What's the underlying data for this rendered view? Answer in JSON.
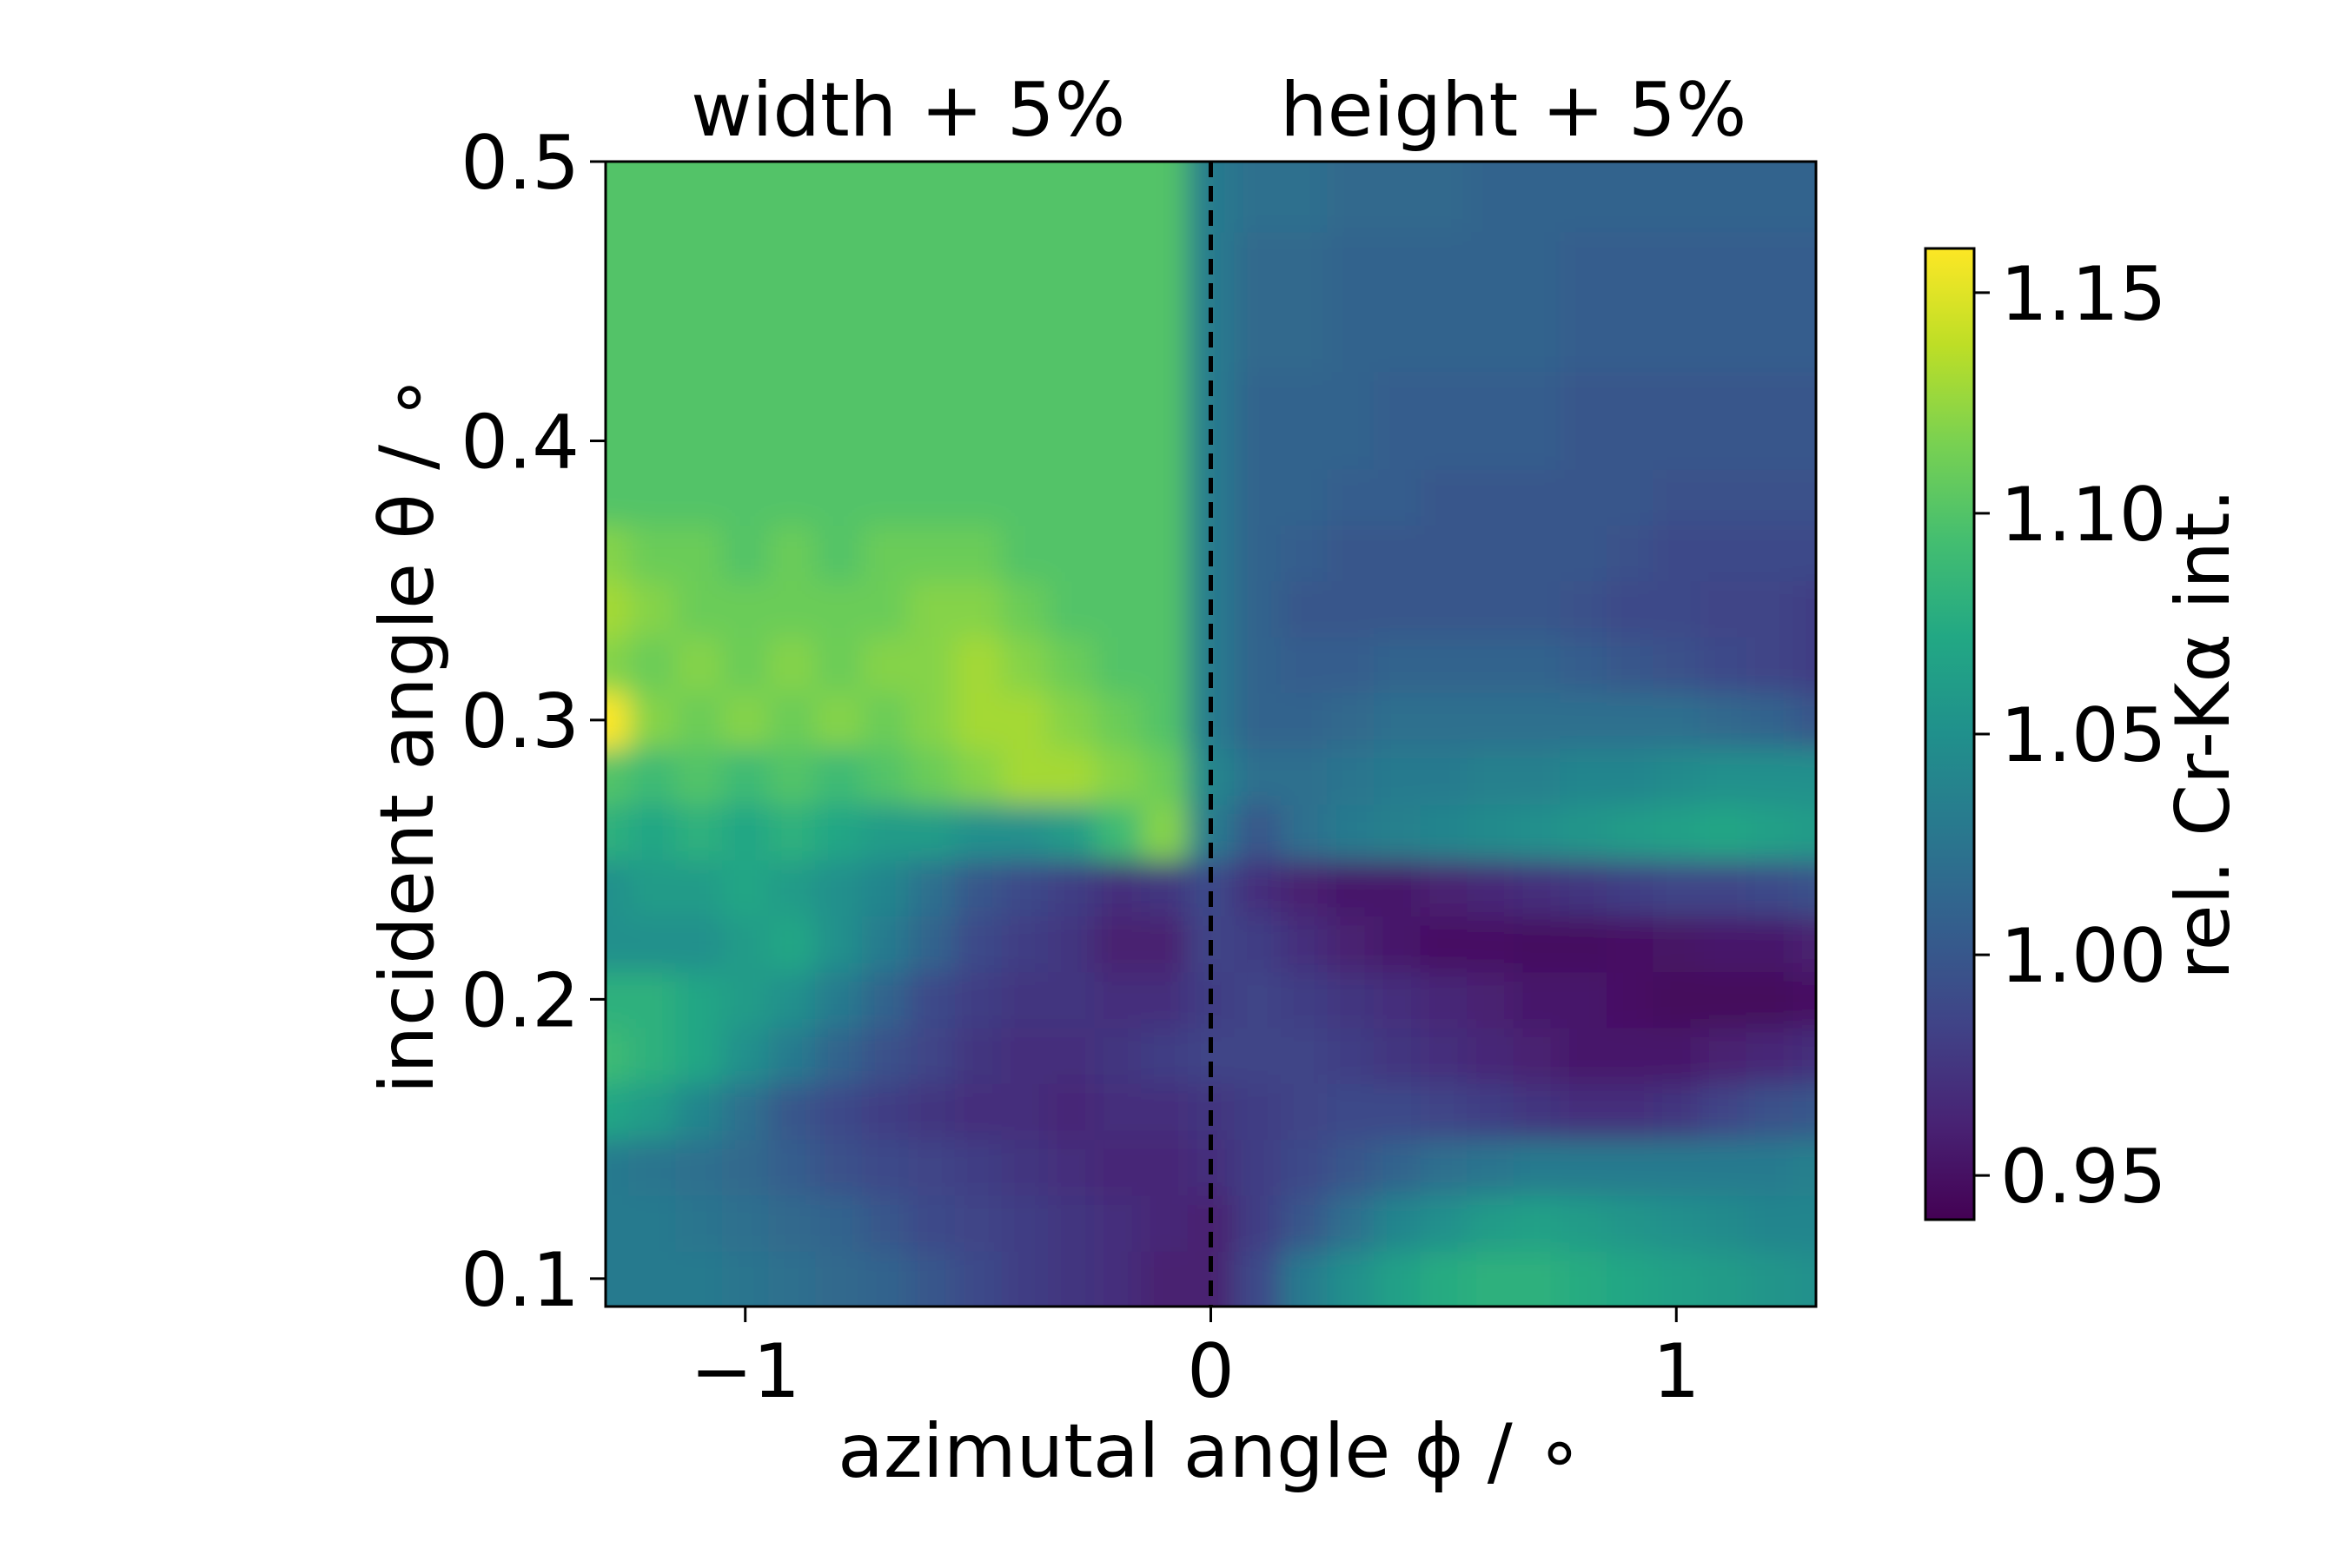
{
  "chart_data": {
    "type": "heatmap",
    "title": "",
    "panels": [
      {
        "title": "width + 5%",
        "x_range": [
          -1.3,
          0
        ]
      },
      {
        "title": "height + 5%",
        "x_range": [
          0,
          1.3
        ]
      }
    ],
    "xlabel": "azimutal angle ϕ / ∘",
    "ylabel": "incident angle θ / ∘",
    "xlim": [
      -1.3,
      1.3
    ],
    "ylim": [
      0.09,
      0.5
    ],
    "xticks": [
      {
        "value": -1,
        "label": "−1"
      },
      {
        "value": 0,
        "label": "0"
      },
      {
        "value": 1,
        "label": "1"
      }
    ],
    "yticks": [
      {
        "value": 0.1,
        "label": "0.1"
      },
      {
        "value": 0.2,
        "label": "0.2"
      },
      {
        "value": 0.3,
        "label": "0.3"
      },
      {
        "value": 0.4,
        "label": "0.4"
      },
      {
        "value": 0.5,
        "label": "0.5"
      }
    ],
    "divider": {
      "x": 0,
      "style": "dashed",
      "color": "#000000"
    },
    "colorbar": {
      "label": "rel. Cr-Kα int.",
      "colormap": "viridis",
      "range": [
        0.94,
        1.16
      ],
      "ticks": [
        {
          "value": 0.95,
          "label": "0.95"
        },
        {
          "value": 1.0,
          "label": "1.00"
        },
        {
          "value": 1.05,
          "label": "1.05"
        },
        {
          "value": 1.1,
          "label": "1.10"
        },
        {
          "value": 1.15,
          "label": "1.15"
        }
      ]
    },
    "grid": false,
    "approx_values": {
      "phi": [
        -1.3,
        -1.2,
        -1.1,
        -1.0,
        -0.9,
        -0.8,
        -0.7,
        -0.6,
        -0.5,
        -0.4,
        -0.3,
        -0.2,
        -0.1,
        0.0,
        0.1,
        0.2,
        0.3,
        0.4,
        0.5,
        0.6,
        0.7,
        0.8,
        0.9,
        1.0,
        1.1,
        1.2,
        1.3
      ],
      "theta": [
        0.1,
        0.12,
        0.14,
        0.16,
        0.18,
        0.2,
        0.22,
        0.24,
        0.26,
        0.28,
        0.3,
        0.32,
        0.34,
        0.36,
        0.38,
        0.4,
        0.45,
        0.5
      ],
      "intensity": [
        [
          1.03,
          1.03,
          1.03,
          1.025,
          1.02,
          1.015,
          1.01,
          1.0,
          0.99,
          0.98,
          0.975,
          0.97,
          0.96,
          0.96,
          0.99,
          1.03,
          1.05,
          1.065,
          1.075,
          1.08,
          1.08,
          1.075,
          1.07,
          1.065,
          1.06,
          1.055,
          1.05
        ],
        [
          1.03,
          1.03,
          1.025,
          1.02,
          1.015,
          1.01,
          1.0,
          0.99,
          0.985,
          0.98,
          0.975,
          0.97,
          0.965,
          0.96,
          0.98,
          1.0,
          1.02,
          1.04,
          1.05,
          1.06,
          1.065,
          1.06,
          1.055,
          1.05,
          1.045,
          1.04,
          1.04
        ],
        [
          1.03,
          1.025,
          1.02,
          1.015,
          1.005,
          0.995,
          0.99,
          0.985,
          0.98,
          0.975,
          0.97,
          0.965,
          0.965,
          0.97,
          0.98,
          0.99,
          1.0,
          1.01,
          1.02,
          1.025,
          1.03,
          1.03,
          1.03,
          1.03,
          1.03,
          1.03,
          1.035
        ],
        [
          1.07,
          1.06,
          1.04,
          1.02,
          1.0,
          0.99,
          0.98,
          0.975,
          0.97,
          0.97,
          0.965,
          0.97,
          0.97,
          0.975,
          0.98,
          0.985,
          0.99,
          0.99,
          0.985,
          0.98,
          0.975,
          0.97,
          0.97,
          0.975,
          0.985,
          0.995,
          1.0
        ],
        [
          1.09,
          1.08,
          1.07,
          1.05,
          1.03,
          1.01,
          0.995,
          0.985,
          0.975,
          0.97,
          0.97,
          0.975,
          0.98,
          0.985,
          0.985,
          0.985,
          0.98,
          0.975,
          0.97,
          0.965,
          0.96,
          0.955,
          0.955,
          0.955,
          0.96,
          0.965,
          0.97
        ],
        [
          1.08,
          1.08,
          1.07,
          1.06,
          1.05,
          1.03,
          1.01,
          0.99,
          0.98,
          0.975,
          0.975,
          0.97,
          0.97,
          0.98,
          0.985,
          0.98,
          0.975,
          0.97,
          0.965,
          0.96,
          0.955,
          0.955,
          0.95,
          0.945,
          0.945,
          0.945,
          0.95
        ],
        [
          1.05,
          1.05,
          1.05,
          1.06,
          1.07,
          1.05,
          1.03,
          1.01,
          0.99,
          0.98,
          0.975,
          0.96,
          0.96,
          0.985,
          0.98,
          0.97,
          0.96,
          0.955,
          0.95,
          0.95,
          0.948,
          0.948,
          0.95,
          0.952,
          0.955,
          0.955,
          0.96
        ],
        [
          1.05,
          1.06,
          1.06,
          1.07,
          1.06,
          1.05,
          1.04,
          1.02,
          1.0,
          0.99,
          0.98,
          0.97,
          0.975,
          0.99,
          0.97,
          0.96,
          0.955,
          0.955,
          0.96,
          0.965,
          0.97,
          0.975,
          0.98,
          0.985,
          0.985,
          0.99,
          0.995
        ],
        [
          1.08,
          1.07,
          1.08,
          1.07,
          1.08,
          1.07,
          1.06,
          1.06,
          1.05,
          1.05,
          1.06,
          1.09,
          1.12,
          1.03,
          1.0,
          1.02,
          1.03,
          1.035,
          1.04,
          1.045,
          1.05,
          1.055,
          1.06,
          1.065,
          1.07,
          1.065,
          1.06
        ],
        [
          1.1,
          1.09,
          1.1,
          1.09,
          1.1,
          1.09,
          1.1,
          1.11,
          1.12,
          1.13,
          1.13,
          1.12,
          1.11,
          1.04,
          1.02,
          1.02,
          1.025,
          1.03,
          1.03,
          1.035,
          1.035,
          1.04,
          1.04,
          1.045,
          1.05,
          1.05,
          1.05
        ],
        [
          1.16,
          1.12,
          1.11,
          1.12,
          1.11,
          1.12,
          1.11,
          1.12,
          1.13,
          1.13,
          1.12,
          1.11,
          1.1,
          1.03,
          1.01,
          1.01,
          1.015,
          1.02,
          1.02,
          1.02,
          1.02,
          1.02,
          1.02,
          1.02,
          1.015,
          1.01,
          1.0
        ],
        [
          1.12,
          1.11,
          1.12,
          1.11,
          1.12,
          1.11,
          1.12,
          1.12,
          1.13,
          1.12,
          1.11,
          1.1,
          1.1,
          1.03,
          1.01,
          1.005,
          1.005,
          1.01,
          1.01,
          1.01,
          1.01,
          1.005,
          1.0,
          0.995,
          0.99,
          0.985,
          0.98
        ],
        [
          1.13,
          1.12,
          1.11,
          1.11,
          1.11,
          1.11,
          1.11,
          1.12,
          1.12,
          1.11,
          1.1,
          1.1,
          1.1,
          1.03,
          1.01,
          1.0,
          1.0,
          1.0,
          1.0,
          1.0,
          1.0,
          0.995,
          0.99,
          0.99,
          0.985,
          0.985,
          0.98
        ],
        [
          1.12,
          1.11,
          1.11,
          1.1,
          1.11,
          1.1,
          1.11,
          1.11,
          1.11,
          1.1,
          1.1,
          1.1,
          1.1,
          1.03,
          1.01,
          1.005,
          1.0,
          1.0,
          1.0,
          1.0,
          1.0,
          1.0,
          0.995,
          0.99,
          0.99,
          0.99,
          0.99
        ],
        [
          1.1,
          1.1,
          1.1,
          1.1,
          1.1,
          1.1,
          1.1,
          1.1,
          1.1,
          1.1,
          1.1,
          1.1,
          1.1,
          1.03,
          1.01,
          1.01,
          1.005,
          1.005,
          1.0,
          1.0,
          1.0,
          1.0,
          1.0,
          0.995,
          0.995,
          0.995,
          0.995
        ],
        [
          1.1,
          1.1,
          1.1,
          1.1,
          1.1,
          1.1,
          1.1,
          1.1,
          1.1,
          1.1,
          1.1,
          1.1,
          1.1,
          1.03,
          1.01,
          1.01,
          1.01,
          1.005,
          1.005,
          1.005,
          1.005,
          1.0,
          1.0,
          1.0,
          1.0,
          1.0,
          1.0
        ],
        [
          1.1,
          1.1,
          1.1,
          1.1,
          1.1,
          1.1,
          1.1,
          1.1,
          1.1,
          1.1,
          1.1,
          1.1,
          1.1,
          1.03,
          1.015,
          1.015,
          1.01,
          1.01,
          1.01,
          1.01,
          1.01,
          1.005,
          1.005,
          1.005,
          1.005,
          1.005,
          1.005
        ],
        [
          1.1,
          1.1,
          1.1,
          1.1,
          1.1,
          1.1,
          1.1,
          1.1,
          1.1,
          1.1,
          1.1,
          1.1,
          1.1,
          1.03,
          1.02,
          1.02,
          1.015,
          1.015,
          1.015,
          1.01,
          1.01,
          1.01,
          1.01,
          1.01,
          1.01,
          1.01,
          1.01
        ]
      ]
    }
  }
}
